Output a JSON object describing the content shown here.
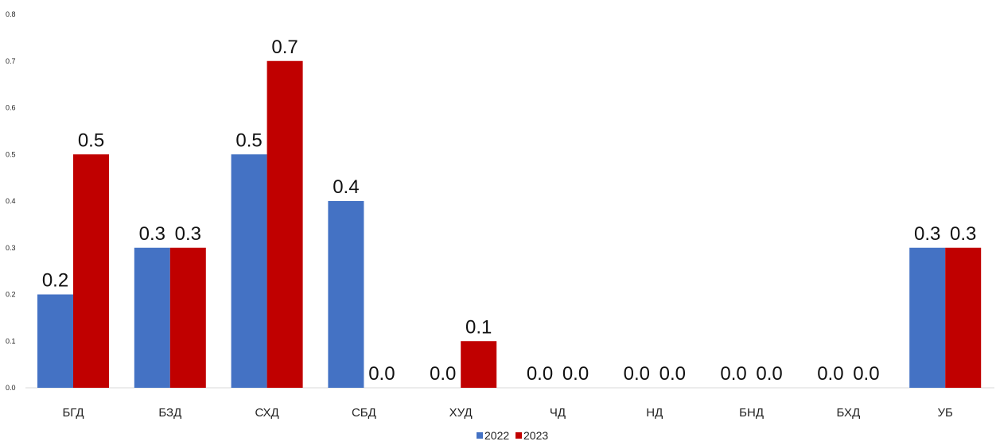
{
  "chart_data": {
    "type": "bar",
    "title": "",
    "xlabel": "",
    "ylabel": "",
    "ylim": [
      0,
      0.8
    ],
    "yticks": [
      "0.0",
      "0.1",
      "0.2",
      "0.3",
      "0.4",
      "0.5",
      "0.6",
      "0.7",
      "0.8"
    ],
    "grid": false,
    "legend_position": "bottom",
    "categories": [
      "БГД",
      "БЗД",
      "СХД",
      "СБД",
      "ХУД",
      "ЧД",
      "НД",
      "БНД",
      "БХД",
      "УБ"
    ],
    "series": [
      {
        "name": "2022",
        "color": "#4472C4",
        "values": [
          0.2,
          0.3,
          0.5,
          0.4,
          0.0,
          0.0,
          0.0,
          0.0,
          0.0,
          0.3
        ],
        "labels": [
          "0.2",
          "0.3",
          "0.5",
          "0.4",
          "0.0",
          "0.0",
          "0.0",
          "0.0",
          "0.0",
          "0.3"
        ]
      },
      {
        "name": "2023",
        "color": "#C00000",
        "values": [
          0.5,
          0.3,
          0.7,
          0.0,
          0.1,
          0.0,
          0.0,
          0.0,
          0.0,
          0.3
        ],
        "labels": [
          "0.5",
          "0.3",
          "0.7",
          "0.0",
          "0.1",
          "0.0",
          "0.0",
          "0.0",
          "0.0",
          "0.3"
        ]
      }
    ]
  }
}
